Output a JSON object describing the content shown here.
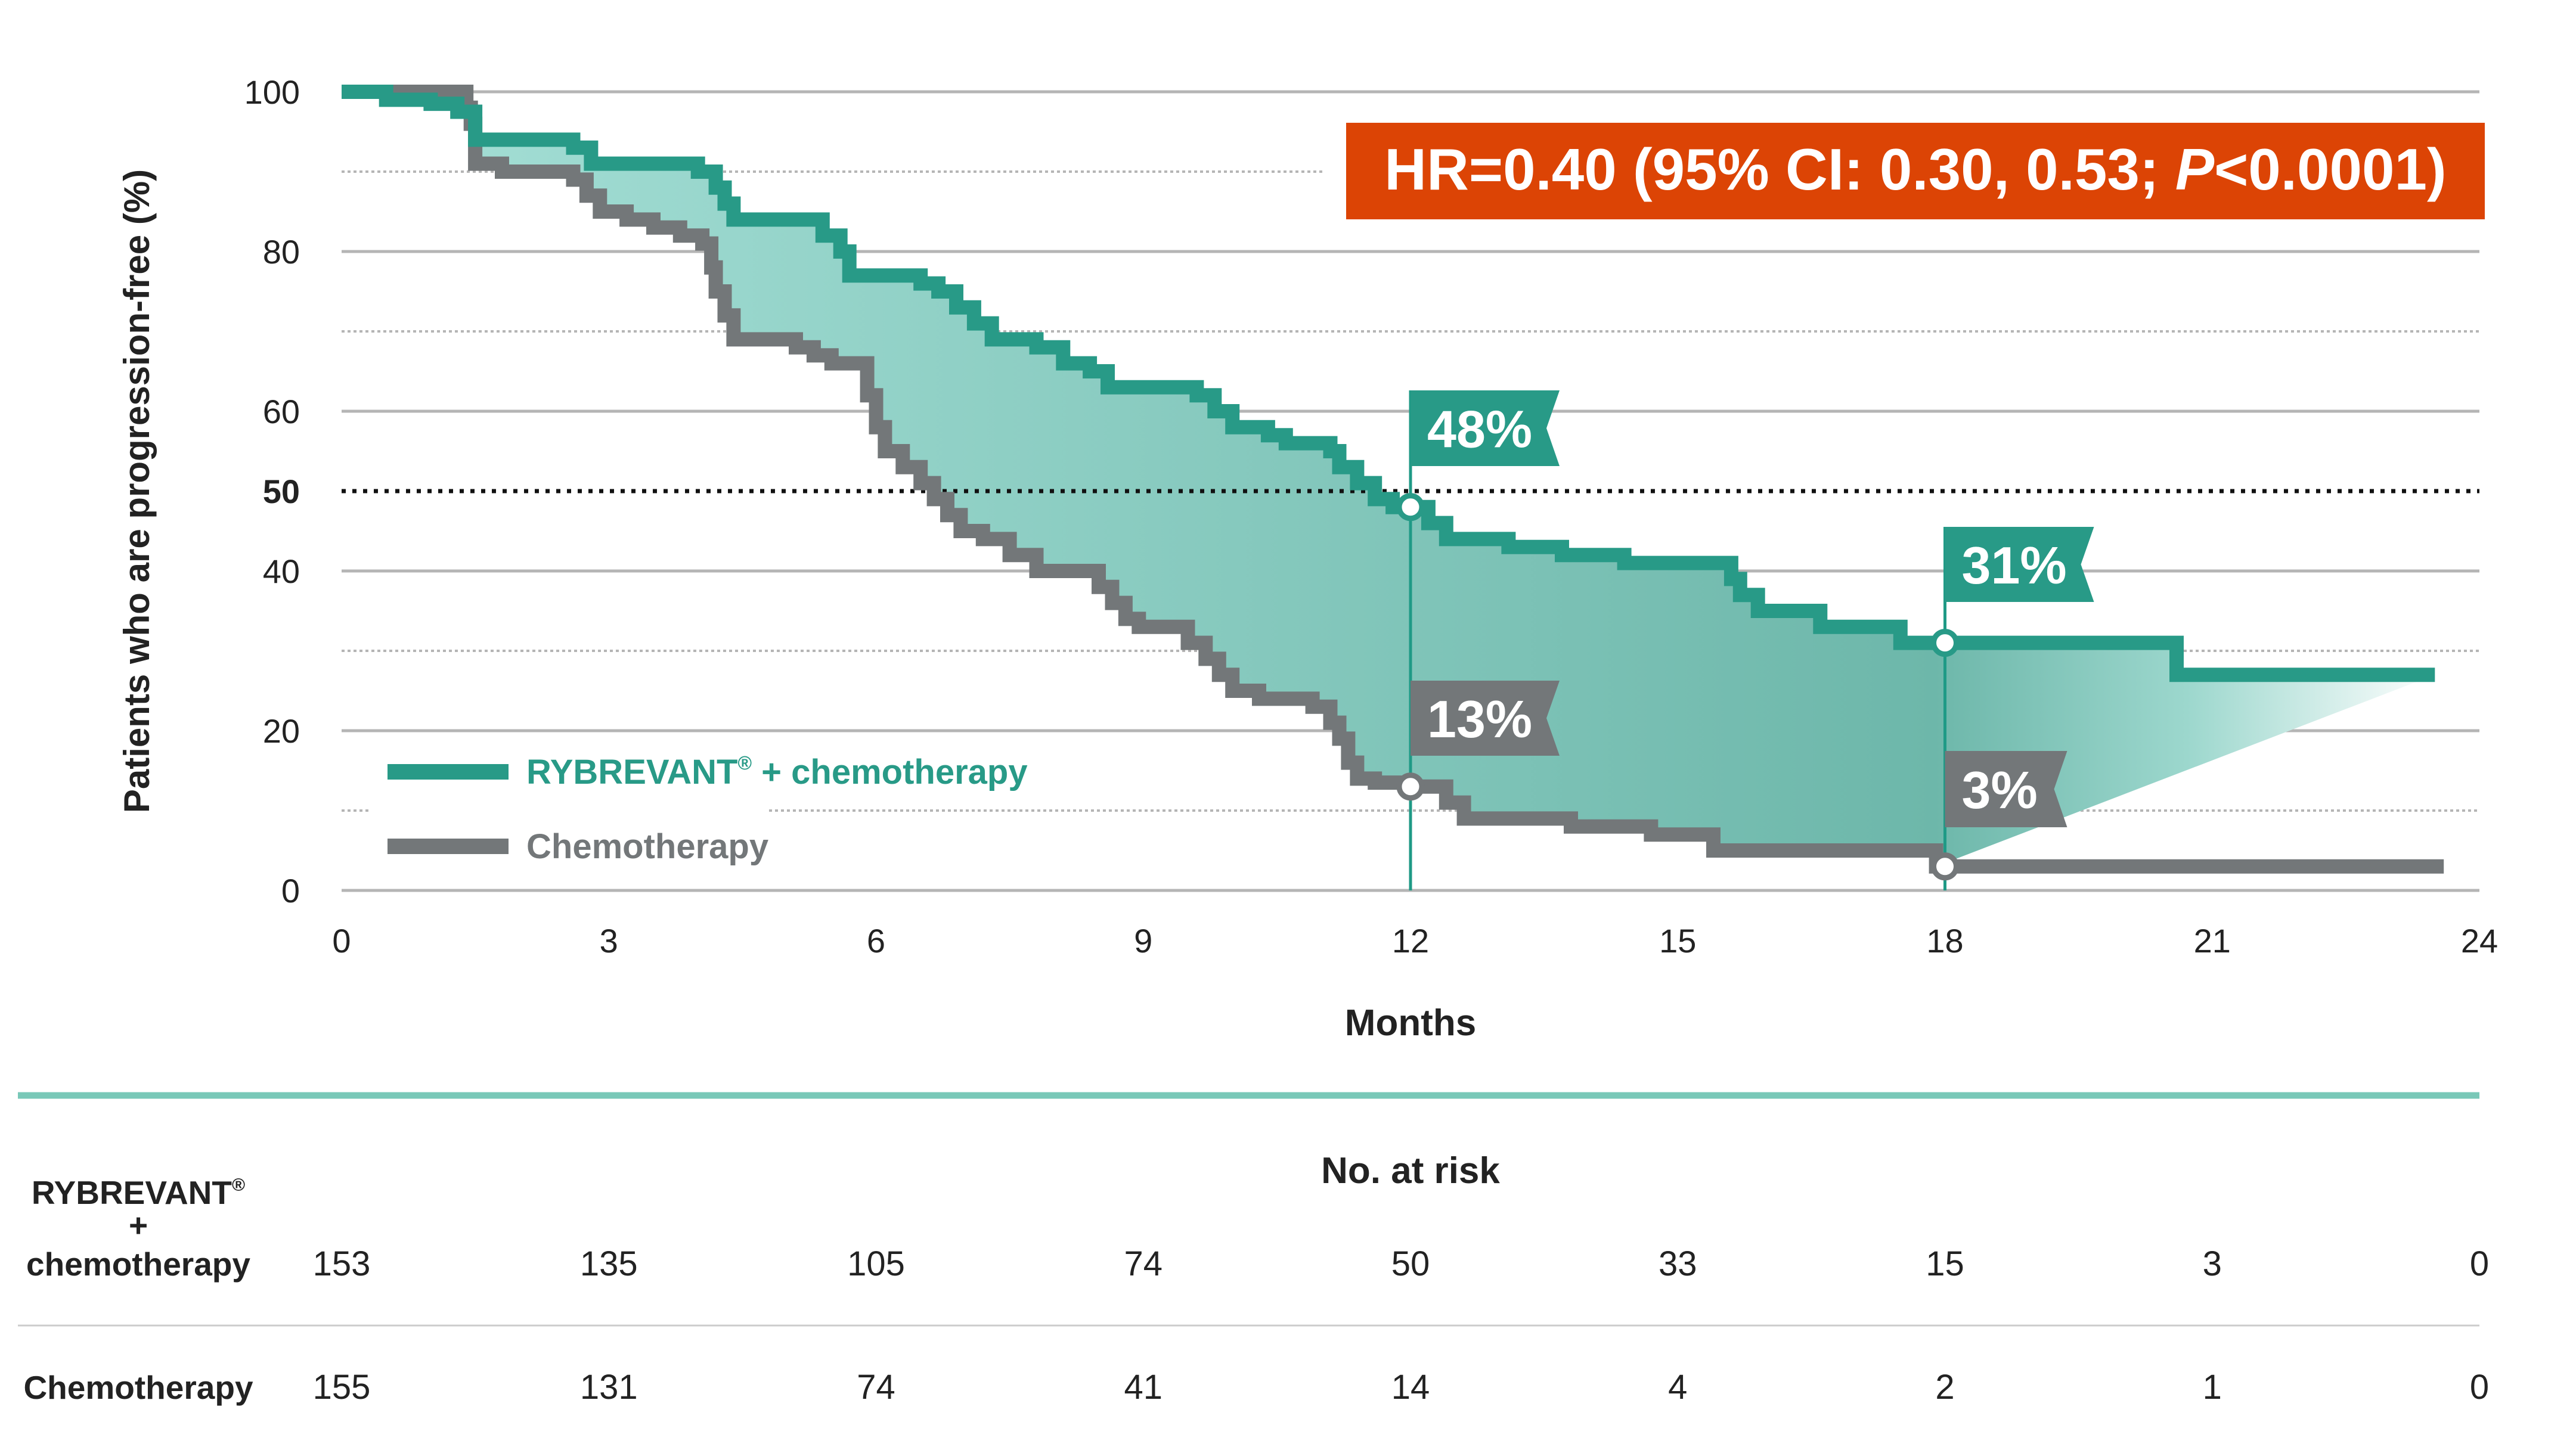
{
  "chart_data": {
    "type": "line",
    "subtype": "kaplan-meier step",
    "ylabel": "Patients who are progression-free (%)",
    "xlabel": "Months",
    "xlim": [
      0,
      24
    ],
    "ylim": [
      0,
      100
    ],
    "x_ticks": [
      "0",
      "3",
      "6",
      "9",
      "12",
      "15",
      "18",
      "21",
      "24"
    ],
    "y_ticks": [
      "0",
      "20",
      "40",
      "50",
      "60",
      "80",
      "100"
    ],
    "grid": "solid at 0/20/40/60/80/100, dotted at 10/30/70/90, black dotted reference at 50",
    "legend_placement": "bottom-left",
    "annotation": {
      "hr_text_pre": "HR=0.40 (95% CI: 0.30, 0.53; ",
      "hr_p": "P",
      "hr_text_post": "<0.0001)",
      "color": "#dc4405"
    },
    "callouts": [
      {
        "series": 0,
        "month": 12,
        "value": 48,
        "label": "48%"
      },
      {
        "series": 1,
        "month": 12,
        "value": 13,
        "label": "13%"
      },
      {
        "series": 0,
        "month": 18,
        "value": 31,
        "label": "31%"
      },
      {
        "series": 1,
        "month": 18,
        "value": 3,
        "label": "3%"
      }
    ],
    "series": [
      {
        "name": "RYBREVANT® + chemotherapy",
        "name_main": "RYBREVANT",
        "name_sup": "®",
        "name_rest": " + chemotherapy",
        "color": "#289a87",
        "points": [
          [
            0,
            100
          ],
          [
            0.5,
            99
          ],
          [
            1.0,
            98.5
          ],
          [
            1.3,
            97.5
          ],
          [
            1.5,
            96
          ],
          [
            1.5,
            94
          ],
          [
            2.6,
            93
          ],
          [
            2.8,
            91
          ],
          [
            4.0,
            90
          ],
          [
            4.2,
            88
          ],
          [
            4.3,
            86
          ],
          [
            4.4,
            84
          ],
          [
            5.4,
            82
          ],
          [
            5.6,
            80
          ],
          [
            5.7,
            77
          ],
          [
            6.5,
            76
          ],
          [
            6.7,
            75
          ],
          [
            6.9,
            73
          ],
          [
            7.1,
            71
          ],
          [
            7.3,
            69
          ],
          [
            7.8,
            68
          ],
          [
            8.1,
            66
          ],
          [
            8.4,
            65
          ],
          [
            8.6,
            63
          ],
          [
            9.6,
            62
          ],
          [
            9.8,
            60
          ],
          [
            10.0,
            58
          ],
          [
            10.4,
            57
          ],
          [
            10.6,
            56
          ],
          [
            11.1,
            55
          ],
          [
            11.2,
            53
          ],
          [
            11.4,
            51
          ],
          [
            11.6,
            49
          ],
          [
            11.8,
            48
          ],
          [
            12.2,
            46
          ],
          [
            12.4,
            44
          ],
          [
            13.1,
            43
          ],
          [
            13.7,
            42
          ],
          [
            14.4,
            41
          ],
          [
            15.6,
            39
          ],
          [
            15.7,
            37
          ],
          [
            15.9,
            35
          ],
          [
            16.6,
            33
          ],
          [
            17.5,
            31
          ],
          [
            20.6,
            27
          ],
          [
            23.5,
            27
          ]
        ]
      },
      {
        "name": "Chemotherapy",
        "color": "#737779",
        "points": [
          [
            0,
            100
          ],
          [
            1.4,
            98
          ],
          [
            1.45,
            96
          ],
          [
            1.5,
            91
          ],
          [
            1.8,
            90
          ],
          [
            2.6,
            89
          ],
          [
            2.75,
            87
          ],
          [
            2.9,
            85
          ],
          [
            3.2,
            84
          ],
          [
            3.5,
            83
          ],
          [
            3.8,
            82
          ],
          [
            4.05,
            81
          ],
          [
            4.15,
            78
          ],
          [
            4.2,
            75
          ],
          [
            4.3,
            72
          ],
          [
            4.4,
            69
          ],
          [
            5.1,
            68
          ],
          [
            5.3,
            67
          ],
          [
            5.5,
            66
          ],
          [
            5.9,
            62
          ],
          [
            6.0,
            58
          ],
          [
            6.1,
            55
          ],
          [
            6.3,
            53
          ],
          [
            6.5,
            51
          ],
          [
            6.65,
            49
          ],
          [
            6.8,
            47
          ],
          [
            6.95,
            45
          ],
          [
            7.2,
            44
          ],
          [
            7.5,
            42
          ],
          [
            7.8,
            40
          ],
          [
            8.5,
            38
          ],
          [
            8.65,
            36
          ],
          [
            8.8,
            34
          ],
          [
            8.95,
            33
          ],
          [
            9.5,
            31
          ],
          [
            9.7,
            29
          ],
          [
            9.85,
            27
          ],
          [
            10.0,
            25
          ],
          [
            10.3,
            24
          ],
          [
            10.9,
            23
          ],
          [
            11.1,
            21
          ],
          [
            11.2,
            19
          ],
          [
            11.3,
            16
          ],
          [
            11.4,
            14
          ],
          [
            11.6,
            13.5
          ],
          [
            12.0,
            13
          ],
          [
            12.4,
            11
          ],
          [
            12.6,
            9
          ],
          [
            13.8,
            8
          ],
          [
            14.7,
            7
          ],
          [
            15.4,
            5
          ],
          [
            17.9,
            3
          ],
          [
            23.6,
            3
          ]
        ]
      }
    ]
  },
  "at_risk": {
    "title": "No. at risk",
    "months": [
      "0",
      "3",
      "6",
      "9",
      "12",
      "15",
      "18",
      "21",
      "24"
    ],
    "rows": [
      {
        "label_line1": "RYBREVANT",
        "label_sup": "®",
        "label_line2": "+",
        "label_line3": "chemotherapy",
        "values": [
          "153",
          "135",
          "105",
          "74",
          "50",
          "33",
          "15",
          "3",
          "0"
        ]
      },
      {
        "label": "Chemotherapy",
        "values": [
          "155",
          "131",
          "74",
          "41",
          "14",
          "4",
          "2",
          "1",
          "0"
        ]
      }
    ]
  },
  "colors": {
    "divider": "#79c8b8",
    "fill_light": "#a6e0d7",
    "fill_dark": "#6db7aa"
  }
}
